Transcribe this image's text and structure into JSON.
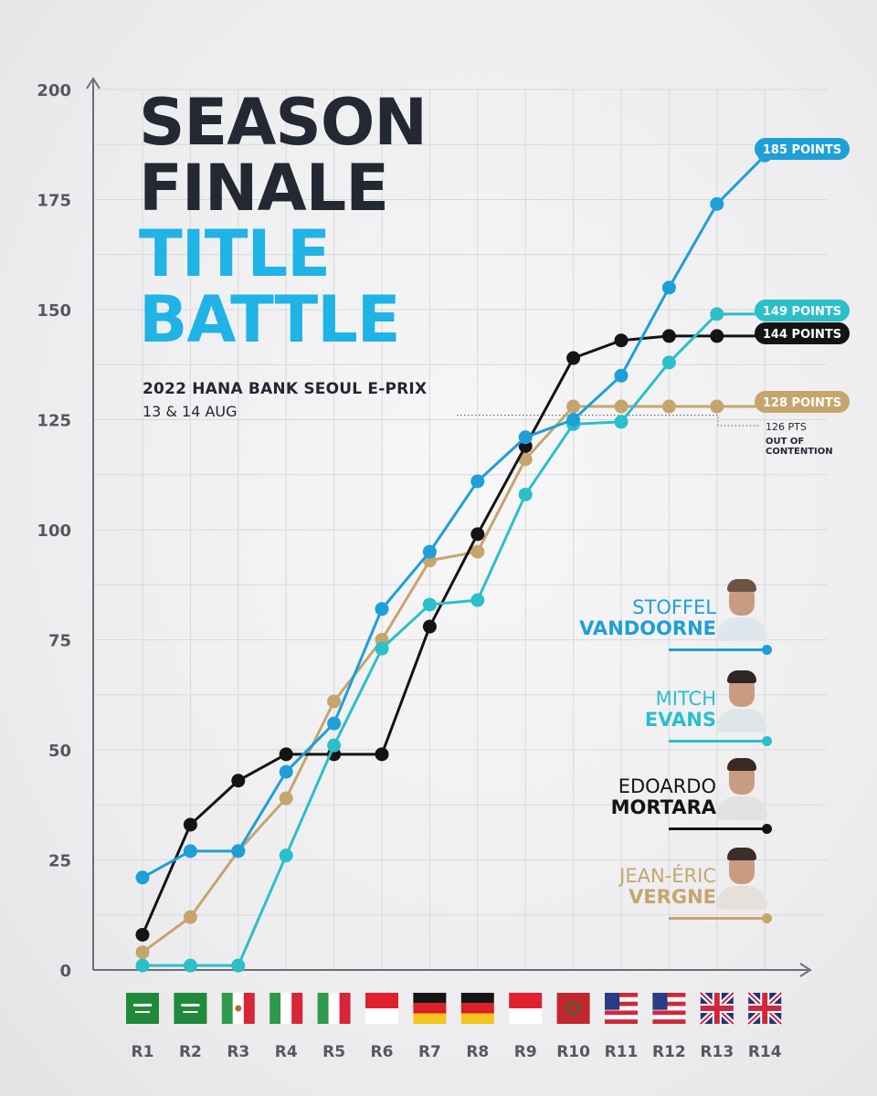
{
  "headline": {
    "line1": "SEASON",
    "line2": "FINALE",
    "line3": "TITLE",
    "line4": "BATTLE",
    "event": "2022 HANA BANK SEOUL E-PRIX",
    "date": "13 & 14 AUG"
  },
  "annotation": {
    "pts": "126 PTS",
    "line1": "OUT OF",
    "line2": "CONTENTION"
  },
  "drivers": [
    {
      "first": "STOFFEL",
      "last": "VANDOORNE",
      "color": "#1e9fd8",
      "points_label": "185 POINTS"
    },
    {
      "first": "MITCH",
      "last": "EVANS",
      "color": "#2bbfc9",
      "points_label": "149 POINTS"
    },
    {
      "first": "EDOARDO",
      "last": "MORTARA",
      "color": "#141414",
      "points_label": "144 POINTS"
    },
    {
      "first": "JEAN-ÉRIC",
      "last": "VERGNE",
      "color": "#c6a56c",
      "points_label": "128 POINTS"
    }
  ],
  "chart_data": {
    "type": "line",
    "categories": [
      "R1",
      "R2",
      "R3",
      "R4",
      "R5",
      "R6",
      "R7",
      "R8",
      "R9",
      "R10",
      "R11",
      "R12",
      "R13",
      "R14"
    ],
    "ylim": [
      0,
      200
    ],
    "yticks": [
      0,
      25,
      50,
      75,
      100,
      125,
      150,
      175,
      200
    ],
    "grid": true,
    "flags": [
      "saudi-arabia",
      "saudi-arabia",
      "mexico",
      "italy",
      "italy",
      "monaco",
      "germany",
      "germany",
      "indonesia",
      "morocco",
      "usa",
      "usa",
      "uk",
      "uk"
    ],
    "series": [
      {
        "name": "VANDOORNE",
        "color": "#1e9fd8",
        "values": [
          21,
          27,
          27,
          45,
          56,
          82,
          95,
          111,
          121,
          125,
          135,
          155,
          174,
          185
        ]
      },
      {
        "name": "EVANS",
        "color": "#2bbfc9",
        "values": [
          1,
          1,
          1,
          26,
          51,
          73,
          83,
          84,
          108,
          124,
          124.5,
          138,
          149,
          149
        ]
      },
      {
        "name": "MORTARA",
        "color": "#141414",
        "values": [
          8,
          33,
          43,
          49,
          49,
          49,
          78,
          99,
          119,
          139,
          143,
          144,
          144,
          144
        ]
      },
      {
        "name": "VERGNE",
        "color": "#c6a56c",
        "values": [
          4,
          12,
          27,
          39,
          61,
          75,
          93,
          95,
          116,
          128,
          128,
          128,
          128,
          128
        ]
      }
    ]
  }
}
